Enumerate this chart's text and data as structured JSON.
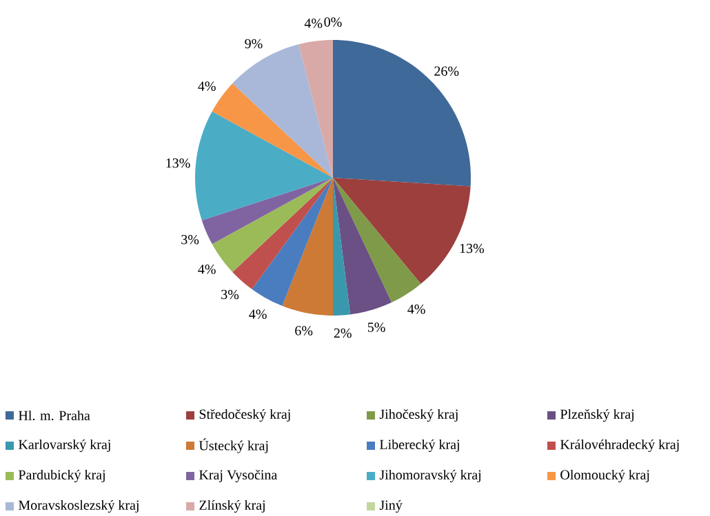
{
  "chart_data": {
    "type": "pie",
    "categories": [
      "Hl. m. Praha",
      "Středočeský kraj",
      "Jihočeský kraj",
      "Plzeňský kraj",
      "Karlovarský kraj",
      "Ústecký kraj",
      "Liberecký kraj",
      "Královéhradecký kraj",
      "Pardubický kraj",
      "Kraj Vysočina",
      "Jihomoravský kraj",
      "Olomoucký kraj",
      "Moravskoslezský kraj",
      "Zlínský kraj",
      "Jiný"
    ],
    "values": [
      26,
      13,
      4,
      5,
      2,
      6,
      4,
      3,
      4,
      3,
      13,
      4,
      9,
      4,
      0
    ],
    "value_labels": [
      "26%",
      "13%",
      "4%",
      "5%",
      "2%",
      "6%",
      "4%",
      "3%",
      "4%",
      "3%",
      "13%",
      "4%",
      "9%",
      "4%",
      "0%"
    ],
    "colors": [
      "#3f6998",
      "#9c3f3d",
      "#7f9a48",
      "#6a5084",
      "#3a98ad",
      "#cc7a35",
      "#4a7cc0",
      "#c0504d",
      "#9bbb59",
      "#8064a2",
      "#4bacc6",
      "#f79646",
      "#a9b8d8",
      "#d9a9a8",
      "#c3d6a0"
    ],
    "legend": "bottom"
  }
}
